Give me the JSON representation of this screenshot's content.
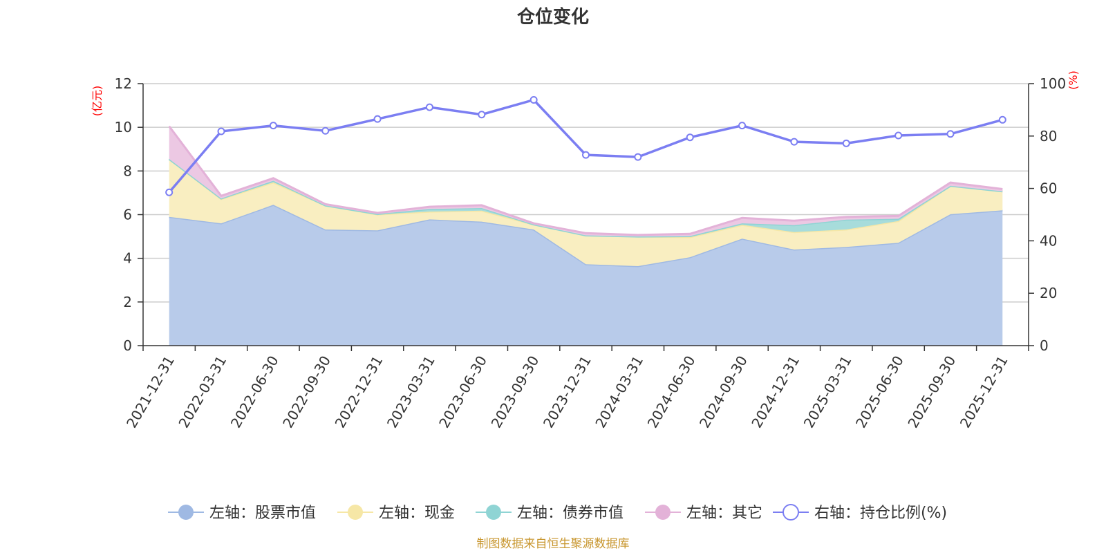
{
  "title": "仓位变化",
  "source": "制图数据来自恒生聚源数据库",
  "chart_data": {
    "type": "area",
    "title": "仓位变化",
    "left_axis_unit": "(亿元)",
    "right_axis_unit": "(%)",
    "left_ylim": [
      0,
      12
    ],
    "left_ticks": [
      "0",
      "2",
      "4",
      "6",
      "8",
      "10",
      "12"
    ],
    "right_ylim": [
      0,
      100
    ],
    "right_ticks": [
      "0",
      "20",
      "40",
      "60",
      "80",
      "100"
    ],
    "grid": true,
    "legend_position": "bottom",
    "categories": [
      "2021-12-31",
      "2022-03-31",
      "2022-06-30",
      "2022-09-30",
      "2022-12-31",
      "2023-03-31",
      "2023-06-30",
      "2023-09-30",
      "2023-12-31",
      "2024-03-31",
      "2024-06-30",
      "2024-09-30",
      "2024-12-31",
      "2025-03-31",
      "2025-06-30",
      "2025-09-30",
      "2025-12-31"
    ],
    "stacked_series": [
      {
        "name": "左轴：股票市值",
        "color": "#9fb9e3",
        "fill": "#b8cbea",
        "values": [
          5.9,
          5.6,
          6.45,
          5.32,
          5.28,
          5.78,
          5.68,
          5.32,
          3.73,
          3.64,
          4.05,
          4.9,
          4.4,
          4.52,
          4.71,
          6.02,
          6.2
        ]
      },
      {
        "name": "左轴：现金",
        "color": "#f6e7a6",
        "fill": "#f9eec1",
        "values": [
          2.65,
          1.12,
          1.03,
          1.1,
          0.73,
          0.36,
          0.5,
          0.23,
          1.32,
          1.36,
          0.92,
          0.63,
          0.8,
          0.8,
          1.0,
          1.3,
          0.87
        ]
      },
      {
        "name": "左轴：债券市值",
        "color": "#8fd4d4",
        "fill": "#a7dcdb",
        "values": [
          0.0,
          0.02,
          0.07,
          0.0,
          0.02,
          0.12,
          0.12,
          0.0,
          0.0,
          0.0,
          0.05,
          0.07,
          0.32,
          0.45,
          0.1,
          0.0,
          0.0
        ]
      },
      {
        "name": "左轴：其它",
        "color": "#e3b2d8",
        "fill": "#ecc8e3",
        "values": [
          1.5,
          0.12,
          0.12,
          0.06,
          0.05,
          0.1,
          0.13,
          0.05,
          0.1,
          0.07,
          0.1,
          0.25,
          0.2,
          0.13,
          0.13,
          0.15,
          0.1
        ]
      }
    ],
    "line_series": {
      "name": "右轴：持仓比例(%)",
      "axis": "right",
      "color": "#7b7ef2",
      "values": [
        58.5,
        81.8,
        84,
        82,
        86.5,
        91,
        88.2,
        93.8,
        72.8,
        72,
        79.5,
        84,
        77.8,
        77.2,
        80.2,
        80.8,
        86.2
      ]
    }
  }
}
